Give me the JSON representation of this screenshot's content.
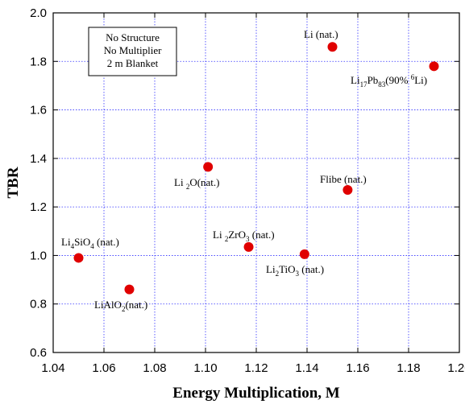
{
  "chart_data": {
    "type": "scatter",
    "xlabel": "Energy Multiplication, M",
    "ylabel": "TBR",
    "xlim": [
      1.04,
      1.2
    ],
    "ylim": [
      0.6,
      2.0
    ],
    "xticks": [
      "1.04",
      "1.06",
      "1.08",
      "1.10",
      "1.12",
      "1.14",
      "1.16",
      "1.18",
      "1.20"
    ],
    "yticks": [
      "0.6",
      "0.8",
      "1.0",
      "1.2",
      "1.4",
      "1.6",
      "1.8",
      "2.0"
    ],
    "grid": true,
    "marker_color": "#e00000",
    "grid_color": "#3030ff",
    "annotation_box": [
      "No Structure",
      "No Multiplier",
      "2 m Blanket"
    ],
    "points": [
      {
        "x": 1.15,
        "y": 1.86,
        "label": "Li (nat.)"
      },
      {
        "x": 1.19,
        "y": 1.78,
        "label": "Li17Pb83(90% 6Li)"
      },
      {
        "x": 1.101,
        "y": 1.365,
        "label": "Li2O(nat.)"
      },
      {
        "x": 1.156,
        "y": 1.27,
        "label": "Flibe (nat.)"
      },
      {
        "x": 1.117,
        "y": 1.035,
        "label": "Li2ZrO3 (nat.)"
      },
      {
        "x": 1.139,
        "y": 1.005,
        "label": "Li2TiO3 (nat.)"
      },
      {
        "x": 1.05,
        "y": 0.99,
        "label": "Li4SiO4 (nat.)"
      },
      {
        "x": 1.07,
        "y": 0.86,
        "label": "LiAlO2 (nat.)"
      }
    ]
  }
}
